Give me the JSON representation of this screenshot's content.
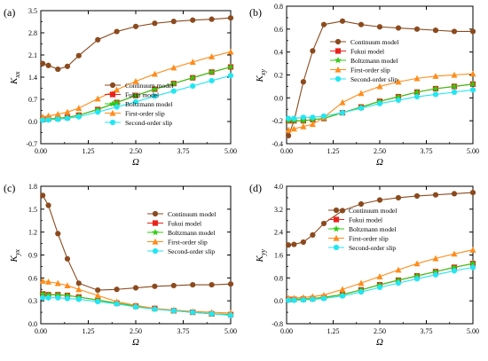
{
  "figure": {
    "series_names": [
      "Continuum model",
      "Fukui model",
      "Boltzmann model",
      "First-order slip",
      "Second-order slip"
    ],
    "series_colors": [
      "#8B4A1E",
      "#E8231C",
      "#2FCB12",
      "#FF8C1A",
      "#22E6F0"
    ],
    "series_markers": [
      "circle",
      "square",
      "star",
      "triangle",
      "circle"
    ],
    "x_ticks": [
      "0.00",
      "1.25",
      "2.50",
      "3.75",
      "5.00"
    ]
  },
  "chart_data": [
    {
      "type": "line",
      "panel_label": "(a)",
      "ylabel": "K",
      "ylabel_sub": "xx",
      "xlabel": "Ω",
      "xlim": [
        0,
        5
      ],
      "ylim": [
        -0.7,
        3.5
      ],
      "y_ticks": [
        "-0.7",
        "0.0",
        "0.7",
        "1.4",
        "2.1",
        "2.8",
        "3.5"
      ],
      "legend_position": "bottom-right",
      "series": [
        {
          "name": "Continuum model",
          "x": [
            0.05,
            0.2,
            0.45,
            0.7,
            1.0,
            1.5,
            2.0,
            2.5,
            3.0,
            3.5,
            4.0,
            4.5,
            5.0
          ],
          "y": [
            1.83,
            1.77,
            1.65,
            1.74,
            2.08,
            2.58,
            2.84,
            3.0,
            3.1,
            3.16,
            3.2,
            3.23,
            3.27
          ]
        },
        {
          "name": "Fukui model",
          "x": [
            0.05,
            0.2,
            0.45,
            0.7,
            1.0,
            1.5,
            2.0,
            2.5,
            3.0,
            3.5,
            4.0,
            4.5,
            5.0
          ],
          "y": [
            0.06,
            0.08,
            0.1,
            0.13,
            0.2,
            0.38,
            0.6,
            0.82,
            1.02,
            1.2,
            1.38,
            1.56,
            1.72
          ]
        },
        {
          "name": "Boltzmann model",
          "x": [
            0.05,
            0.2,
            0.45,
            0.7,
            1.0,
            1.5,
            2.0,
            2.5,
            3.0,
            3.5,
            4.0,
            4.5,
            5.0
          ],
          "y": [
            0.06,
            0.08,
            0.1,
            0.13,
            0.2,
            0.38,
            0.6,
            0.82,
            1.02,
            1.2,
            1.38,
            1.56,
            1.72
          ]
        },
        {
          "name": "First-order slip",
          "x": [
            0.05,
            0.2,
            0.45,
            0.7,
            1.0,
            1.5,
            2.0,
            2.5,
            3.0,
            3.5,
            4.0,
            4.5,
            5.0
          ],
          "y": [
            0.15,
            0.18,
            0.23,
            0.3,
            0.42,
            0.72,
            1.0,
            1.27,
            1.5,
            1.7,
            1.88,
            2.05,
            2.2
          ]
        },
        {
          "name": "Second-order slip",
          "x": [
            0.05,
            0.2,
            0.45,
            0.7,
            1.0,
            1.5,
            2.0,
            2.5,
            3.0,
            3.5,
            4.0,
            4.5,
            5.0
          ],
          "y": [
            0.04,
            0.05,
            0.07,
            0.1,
            0.15,
            0.3,
            0.46,
            0.62,
            0.8,
            0.96,
            1.12,
            1.29,
            1.45
          ]
        }
      ]
    },
    {
      "type": "line",
      "panel_label": "(b)",
      "ylabel": "K",
      "ylabel_sub": "xy",
      "xlabel": "Ω",
      "xlim": [
        0,
        5
      ],
      "ylim": [
        -0.4,
        0.8
      ],
      "y_ticks": [
        "-0.4",
        "-0.2",
        "0.0",
        "0.2",
        "0.4",
        "0.6",
        "0.8"
      ],
      "legend_position": "center-right",
      "series": [
        {
          "name": "Continuum model",
          "x": [
            0.05,
            0.2,
            0.45,
            0.7,
            1.0,
            1.5,
            2.0,
            2.5,
            3.0,
            3.5,
            4.0,
            4.5,
            5.0
          ],
          "y": [
            -0.33,
            -0.2,
            0.14,
            0.41,
            0.64,
            0.67,
            0.64,
            0.62,
            0.61,
            0.6,
            0.59,
            0.58,
            0.58
          ]
        },
        {
          "name": "Fukui model",
          "x": [
            0.05,
            0.2,
            0.45,
            0.7,
            1.0,
            1.5,
            2.0,
            2.5,
            3.0,
            3.5,
            4.0,
            4.5,
            5.0
          ],
          "y": [
            -0.2,
            -0.2,
            -0.2,
            -0.19,
            -0.18,
            -0.13,
            -0.08,
            -0.03,
            0.01,
            0.05,
            0.08,
            0.1,
            0.12
          ]
        },
        {
          "name": "Boltzmann model",
          "x": [
            0.05,
            0.2,
            0.45,
            0.7,
            1.0,
            1.5,
            2.0,
            2.5,
            3.0,
            3.5,
            4.0,
            4.5,
            5.0
          ],
          "y": [
            -0.2,
            -0.2,
            -0.2,
            -0.19,
            -0.18,
            -0.13,
            -0.08,
            -0.03,
            0.01,
            0.05,
            0.08,
            0.1,
            0.12
          ]
        },
        {
          "name": "First-order slip",
          "x": [
            0.05,
            0.2,
            0.45,
            0.7,
            1.0,
            1.5,
            2.0,
            2.5,
            3.0,
            3.5,
            4.0,
            4.5,
            5.0
          ],
          "y": [
            -0.28,
            -0.27,
            -0.25,
            -0.23,
            -0.17,
            -0.04,
            0.04,
            0.1,
            0.14,
            0.17,
            0.19,
            0.2,
            0.21
          ]
        },
        {
          "name": "Second-order slip",
          "x": [
            0.05,
            0.2,
            0.45,
            0.7,
            1.0,
            1.5,
            2.0,
            2.5,
            3.0,
            3.5,
            4.0,
            4.5,
            5.0
          ],
          "y": [
            -0.18,
            -0.18,
            -0.17,
            -0.17,
            -0.16,
            -0.13,
            -0.09,
            -0.05,
            -0.02,
            0.01,
            0.03,
            0.05,
            0.07
          ]
        }
      ]
    },
    {
      "type": "line",
      "panel_label": "(c)",
      "ylabel": "K",
      "ylabel_sub": "yx",
      "xlabel": "Ω",
      "xlim": [
        0,
        5
      ],
      "ylim": [
        0,
        1.8
      ],
      "y_ticks": [
        "0.0",
        "0.3",
        "0.6",
        "0.9",
        "1.2",
        "1.5",
        "1.8"
      ],
      "legend_position": "top-right",
      "series": [
        {
          "name": "Continuum model",
          "x": [
            0.05,
            0.2,
            0.45,
            0.7,
            1.0,
            1.5,
            2.0,
            2.5,
            3.0,
            3.5,
            4.0,
            4.5,
            5.0
          ],
          "y": [
            1.68,
            1.55,
            1.18,
            0.85,
            0.53,
            0.44,
            0.45,
            0.47,
            0.49,
            0.5,
            0.51,
            0.51,
            0.52
          ]
        },
        {
          "name": "Fukui model",
          "x": [
            0.05,
            0.2,
            0.45,
            0.7,
            1.0,
            1.5,
            2.0,
            2.5,
            3.0,
            3.5,
            4.0,
            4.5,
            5.0
          ],
          "y": [
            0.39,
            0.38,
            0.38,
            0.37,
            0.35,
            0.31,
            0.27,
            0.23,
            0.2,
            0.17,
            0.15,
            0.13,
            0.12
          ]
        },
        {
          "name": "Boltzmann model",
          "x": [
            0.05,
            0.2,
            0.45,
            0.7,
            1.0,
            1.5,
            2.0,
            2.5,
            3.0,
            3.5,
            4.0,
            4.5,
            5.0
          ],
          "y": [
            0.39,
            0.38,
            0.38,
            0.37,
            0.35,
            0.31,
            0.27,
            0.23,
            0.2,
            0.17,
            0.15,
            0.13,
            0.12
          ]
        },
        {
          "name": "First-order slip",
          "x": [
            0.05,
            0.2,
            0.45,
            0.7,
            1.0,
            1.5,
            2.0,
            2.5,
            3.0,
            3.5,
            4.0,
            4.5,
            5.0
          ],
          "y": [
            0.56,
            0.55,
            0.53,
            0.5,
            0.45,
            0.37,
            0.29,
            0.24,
            0.2,
            0.18,
            0.16,
            0.15,
            0.14
          ]
        },
        {
          "name": "Second-order slip",
          "x": [
            0.05,
            0.2,
            0.45,
            0.7,
            1.0,
            1.5,
            2.0,
            2.5,
            3.0,
            3.5,
            4.0,
            4.5,
            5.0
          ],
          "y": [
            0.34,
            0.34,
            0.34,
            0.33,
            0.32,
            0.29,
            0.26,
            0.22,
            0.19,
            0.17,
            0.15,
            0.13,
            0.11
          ]
        }
      ]
    },
    {
      "type": "line",
      "panel_label": "(d)",
      "ylabel": "K",
      "ylabel_sub": "yy",
      "xlabel": "Ω",
      "xlim": [
        0,
        5
      ],
      "ylim": [
        -0.8,
        4.0
      ],
      "y_ticks": [
        "-0.8",
        "0.0",
        "0.8",
        "1.6",
        "2.4",
        "3.2",
        "4.0"
      ],
      "legend_position": "center-right",
      "series": [
        {
          "name": "Continuum model",
          "x": [
            0.05,
            0.2,
            0.45,
            0.7,
            1.0,
            1.5,
            2.0,
            2.5,
            3.0,
            3.5,
            4.0,
            4.5,
            5.0
          ],
          "y": [
            1.95,
            1.97,
            2.05,
            2.3,
            2.7,
            3.15,
            3.38,
            3.52,
            3.6,
            3.66,
            3.7,
            3.74,
            3.78
          ]
        },
        {
          "name": "Fukui model",
          "x": [
            0.05,
            0.2,
            0.45,
            0.7,
            1.0,
            1.5,
            2.0,
            2.5,
            3.0,
            3.5,
            4.0,
            4.5,
            5.0
          ],
          "y": [
            0.05,
            0.05,
            0.06,
            0.08,
            0.12,
            0.22,
            0.38,
            0.56,
            0.72,
            0.87,
            1.02,
            1.17,
            1.3
          ]
        },
        {
          "name": "Boltzmann model",
          "x": [
            0.05,
            0.2,
            0.45,
            0.7,
            1.0,
            1.5,
            2.0,
            2.5,
            3.0,
            3.5,
            4.0,
            4.5,
            5.0
          ],
          "y": [
            0.05,
            0.05,
            0.06,
            0.08,
            0.12,
            0.22,
            0.38,
            0.56,
            0.72,
            0.87,
            1.02,
            1.17,
            1.3
          ]
        },
        {
          "name": "First-order slip",
          "x": [
            0.05,
            0.2,
            0.45,
            0.7,
            1.0,
            1.5,
            2.0,
            2.5,
            3.0,
            3.5,
            4.0,
            4.5,
            5.0
          ],
          "y": [
            0.1,
            0.1,
            0.12,
            0.15,
            0.2,
            0.4,
            0.62,
            0.85,
            1.08,
            1.3,
            1.48,
            1.64,
            1.78
          ]
        },
        {
          "name": "Second-order slip",
          "x": [
            0.05,
            0.2,
            0.45,
            0.7,
            1.0,
            1.5,
            2.0,
            2.5,
            3.0,
            3.5,
            4.0,
            4.5,
            5.0
          ],
          "y": [
            0.02,
            0.02,
            0.03,
            0.05,
            0.08,
            0.17,
            0.31,
            0.47,
            0.62,
            0.77,
            0.91,
            1.05,
            1.17
          ]
        }
      ]
    }
  ]
}
